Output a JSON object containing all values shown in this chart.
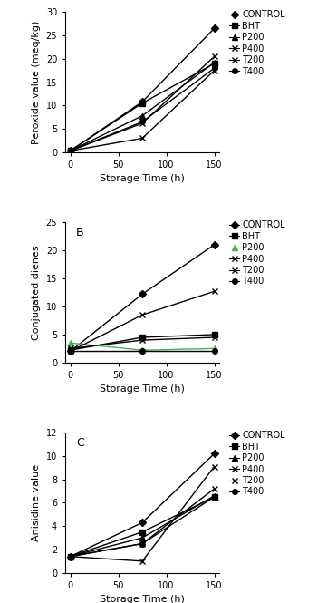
{
  "time": [
    0,
    75,
    150
  ],
  "panel_A": {
    "title": "",
    "ylabel": "Peroxide value (meq/kg)",
    "xlabel": "Storage Time (h)",
    "ylim": [
      0,
      30
    ],
    "yticks": [
      0,
      5,
      10,
      15,
      20,
      25,
      30
    ],
    "xlim": [
      -5,
      155
    ],
    "xticks": [
      0,
      50,
      100,
      150
    ],
    "series": {
      "CONTROL": [
        0.3,
        10.8,
        26.5
      ],
      "BHT": [
        0.3,
        10.5,
        19.0
      ],
      "P200": [
        0.3,
        7.8,
        19.2
      ],
      "P400": [
        0.3,
        3.0,
        17.5
      ],
      "T200": [
        0.3,
        6.2,
        20.5
      ],
      "T400": [
        0.3,
        6.5,
        18.0
      ]
    }
  },
  "panel_B": {
    "title": "B",
    "ylabel": "Conjugated dienes",
    "xlabel": "Storage Time (h)",
    "ylim": [
      0,
      25
    ],
    "yticks": [
      0,
      5,
      10,
      15,
      20,
      25
    ],
    "xlim": [
      -5,
      155
    ],
    "xticks": [
      0,
      50,
      100,
      150
    ],
    "series": {
      "CONTROL": [
        2.0,
        12.2,
        21.0
      ],
      "BHT": [
        2.2,
        4.5,
        5.0
      ],
      "P200": [
        3.5,
        2.2,
        2.5
      ],
      "P400": [
        2.0,
        8.5,
        12.7
      ],
      "T200": [
        2.5,
        4.0,
        4.5
      ],
      "T400": [
        2.0,
        2.0,
        2.0
      ]
    }
  },
  "panel_C": {
    "title": "C",
    "ylabel": "Anisidine value",
    "xlabel": "Storage Time (h)",
    "ylim": [
      0,
      12
    ],
    "yticks": [
      0,
      2,
      4,
      6,
      8,
      10,
      12
    ],
    "xlim": [
      -5,
      155
    ],
    "xticks": [
      0,
      50,
      100,
      150
    ],
    "series": {
      "CONTROL": [
        1.4,
        4.3,
        10.2
      ],
      "BHT": [
        1.4,
        3.5,
        6.5
      ],
      "P200": [
        1.4,
        3.0,
        6.6
      ],
      "P400": [
        1.4,
        1.0,
        9.1
      ],
      "T200": [
        1.4,
        2.5,
        7.2
      ],
      "T400": [
        1.4,
        2.5,
        6.5
      ]
    }
  },
  "series_styles": {
    "CONTROL": {
      "color": "#000000",
      "marker": "D",
      "markersize": 4,
      "linewidth": 1.0,
      "mfc": "black"
    },
    "BHT": {
      "color": "#000000",
      "marker": "s",
      "markersize": 4,
      "linewidth": 1.0,
      "mfc": "black"
    },
    "P200": {
      "color": "#000000",
      "marker": "^",
      "markersize": 4,
      "linewidth": 1.0,
      "mfc": "black"
    },
    "P400": {
      "color": "#000000",
      "marker": "x",
      "markersize": 4,
      "linewidth": 1.0,
      "mfc": "none"
    },
    "T200": {
      "color": "#000000",
      "marker": "x",
      "markersize": 4,
      "linewidth": 1.0,
      "mfc": "none"
    },
    "T400": {
      "color": "#000000",
      "marker": "o",
      "markersize": 4,
      "linewidth": 1.0,
      "mfc": "black"
    }
  },
  "panel_B_P200_color": "#4caf50",
  "legend_labels": [
    "CONTROL",
    "BHT",
    "P200",
    "P400",
    "T200",
    "T400"
  ]
}
